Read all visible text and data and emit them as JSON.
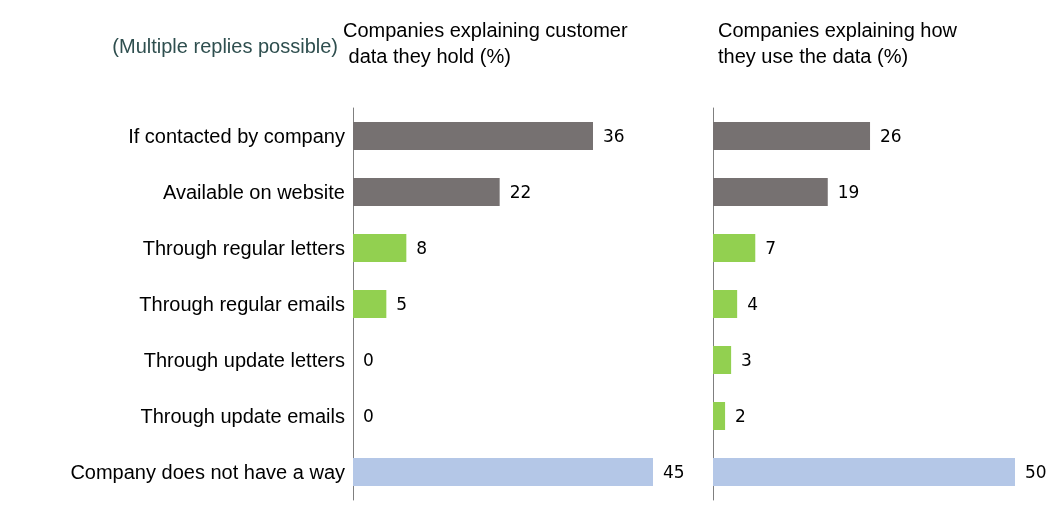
{
  "chart_data": [
    {
      "type": "bar",
      "orientation": "horizontal",
      "title": "Companies explaining customer data they hold (%)",
      "annotations": [
        "(Multiple replies possible)"
      ],
      "categories": [
        "If contacted by company",
        "Available on website",
        "Through regular letters",
        "Through regular emails",
        "Through update letters",
        "Through update emails",
        "Company does not have a way"
      ],
      "values": [
        36,
        22,
        8,
        5,
        0,
        0,
        45
      ],
      "colors": [
        "#767171",
        "#767171",
        "#92d050",
        "#92d050",
        "#92d050",
        "#92d050",
        "#b4c7e7"
      ],
      "data_labels": true,
      "tick_labels": "y"
    },
    {
      "type": "bar",
      "orientation": "horizontal",
      "title": "Companies explaining how they use the data (%)",
      "categories": [
        null,
        null,
        null,
        null,
        null,
        null,
        null
      ],
      "values": [
        26,
        19,
        7,
        4,
        3,
        2,
        50
      ],
      "colors": [
        "#767171",
        "#767171",
        "#92d050",
        "#92d050",
        "#92d050",
        "#92d050",
        "#b4c7e7"
      ],
      "data_labels": true,
      "tick_labels": false
    }
  ]
}
